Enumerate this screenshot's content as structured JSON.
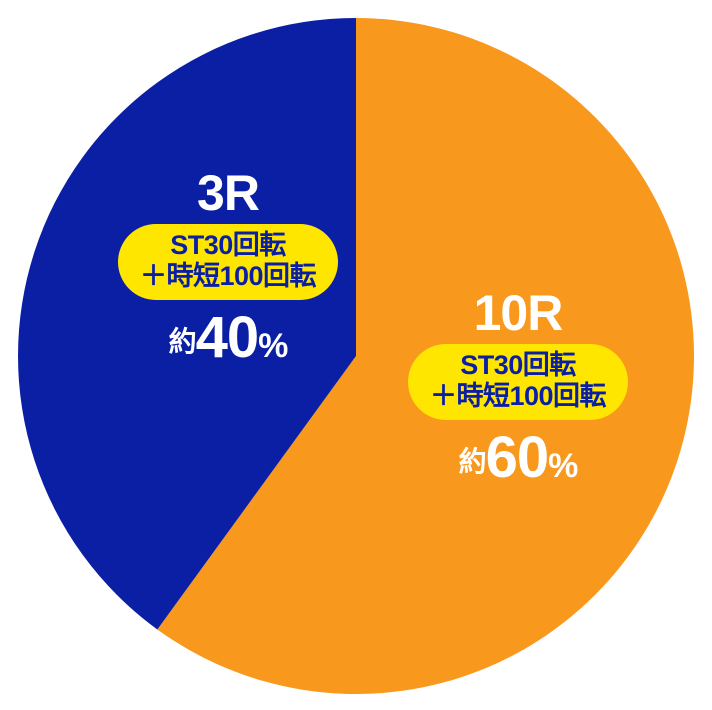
{
  "chart": {
    "type": "pie",
    "background_color": "#ffffff",
    "outer_radius": 338,
    "slices": [
      {
        "key": "ten_r",
        "value": 60,
        "color": "#f8981d",
        "start_angle_deg": 0,
        "end_angle_deg": 216,
        "title": "10R",
        "pill_line1": "ST30回転",
        "pill_line2": "＋時短100回転",
        "pill_bg": "#ffe600",
        "pill_text_color": "#0b1fa5",
        "approx": "約",
        "pct_num": "60",
        "pct_unit": "%",
        "text_color": "#ffffff",
        "title_fontsize": 50,
        "pill_fontsize": 27,
        "pct_num_fontsize": 58,
        "pct_approx_fontsize": 28,
        "pct_unit_fontsize": 34
      },
      {
        "key": "three_r",
        "value": 40,
        "color": "#0b1fa5",
        "start_angle_deg": 216,
        "end_angle_deg": 360,
        "title": "3R",
        "pill_line1": "ST30回転",
        "pill_line2": "＋時短100回転",
        "pill_bg": "#ffe600",
        "pill_text_color": "#0b1fa5",
        "approx": "約",
        "pct_num": "40",
        "pct_unit": "%",
        "text_color": "#ffffff",
        "title_fontsize": 50,
        "pill_fontsize": 27,
        "pct_num_fontsize": 58,
        "pct_approx_fontsize": 28,
        "pct_unit_fontsize": 34
      }
    ]
  }
}
